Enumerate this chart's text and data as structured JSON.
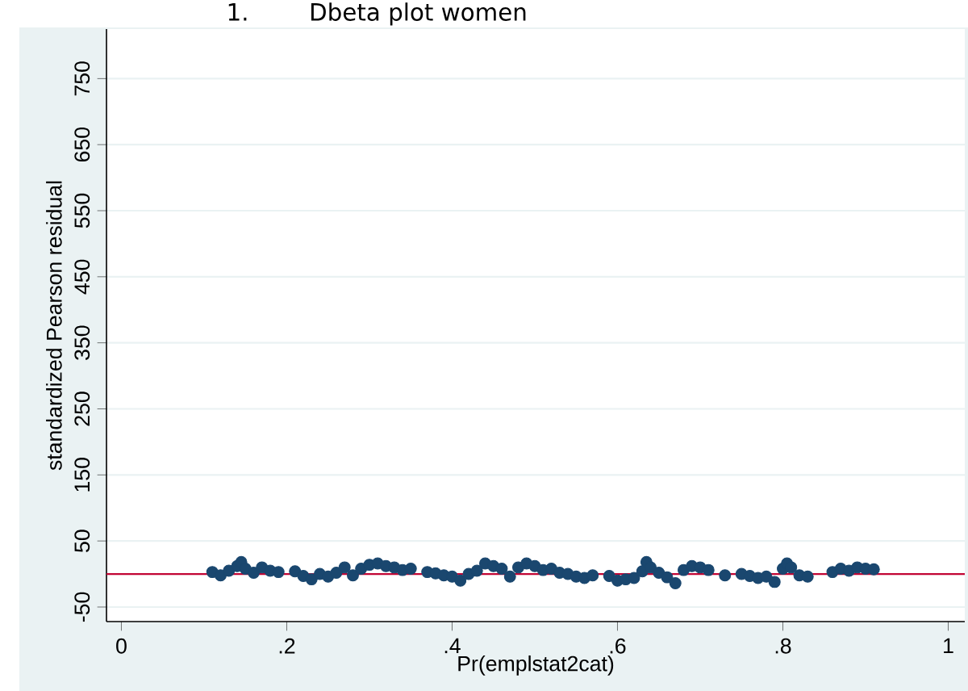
{
  "chart_data": {
    "type": "scatter",
    "title": "1.        Dbeta plot women",
    "xlabel": "Pr(emplstat2cat)",
    "ylabel": "standardized Pearson residual",
    "xlim": [
      -0.018,
      1.02
    ],
    "ylim": [
      -72,
      825
    ],
    "xticks": [
      {
        "value": 0,
        "label": "0"
      },
      {
        "value": 0.2,
        "label": ".2"
      },
      {
        "value": 0.4,
        "label": ".4"
      },
      {
        "value": 0.6,
        "label": ".6"
      },
      {
        "value": 0.8,
        "label": ".8"
      },
      {
        "value": 1,
        "label": "1"
      }
    ],
    "yticks": [
      -50,
      50,
      150,
      250,
      350,
      450,
      550,
      650,
      750
    ],
    "grid": "y",
    "marker": "circle",
    "ref_lines": [
      {
        "axis": "y",
        "value": 0,
        "color": "#c10534"
      }
    ],
    "series": [
      {
        "color": "#1a476f",
        "x": [
          0.11,
          0.12,
          0.13,
          0.14,
          0.145,
          0.15,
          0.16,
          0.17,
          0.18,
          0.19,
          0.21,
          0.22,
          0.23,
          0.24,
          0.25,
          0.26,
          0.27,
          0.28,
          0.29,
          0.3,
          0.31,
          0.32,
          0.33,
          0.34,
          0.35,
          0.37,
          0.38,
          0.39,
          0.4,
          0.41,
          0.42,
          0.43,
          0.44,
          0.45,
          0.46,
          0.47,
          0.48,
          0.49,
          0.5,
          0.51,
          0.52,
          0.53,
          0.54,
          0.55,
          0.56,
          0.57,
          0.59,
          0.6,
          0.61,
          0.62,
          0.63,
          0.635,
          0.64,
          0.65,
          0.66,
          0.67,
          0.68,
          0.69,
          0.7,
          0.71,
          0.73,
          0.75,
          0.76,
          0.77,
          0.78,
          0.79,
          0.8,
          0.805,
          0.81,
          0.82,
          0.83,
          0.86,
          0.87,
          0.88,
          0.89,
          0.9,
          0.91
        ],
        "values": [
          3,
          -2,
          5,
          12,
          18,
          8,
          2,
          10,
          5,
          3,
          4,
          -3,
          -8,
          0,
          -4,
          2,
          10,
          -2,
          8,
          14,
          16,
          12,
          10,
          6,
          8,
          3,
          1,
          -2,
          -4,
          -10,
          0,
          5,
          16,
          12,
          8,
          -4,
          10,
          16,
          12,
          6,
          8,
          2,
          0,
          -4,
          -6,
          -2,
          -3,
          -10,
          -8,
          -6,
          4,
          18,
          10,
          2,
          -5,
          -14,
          6,
          12,
          10,
          6,
          -2,
          0,
          -3,
          -6,
          -4,
          -12,
          8,
          16,
          10,
          -2,
          -4,
          3,
          8,
          5,
          10,
          8,
          7
        ]
      }
    ]
  }
}
